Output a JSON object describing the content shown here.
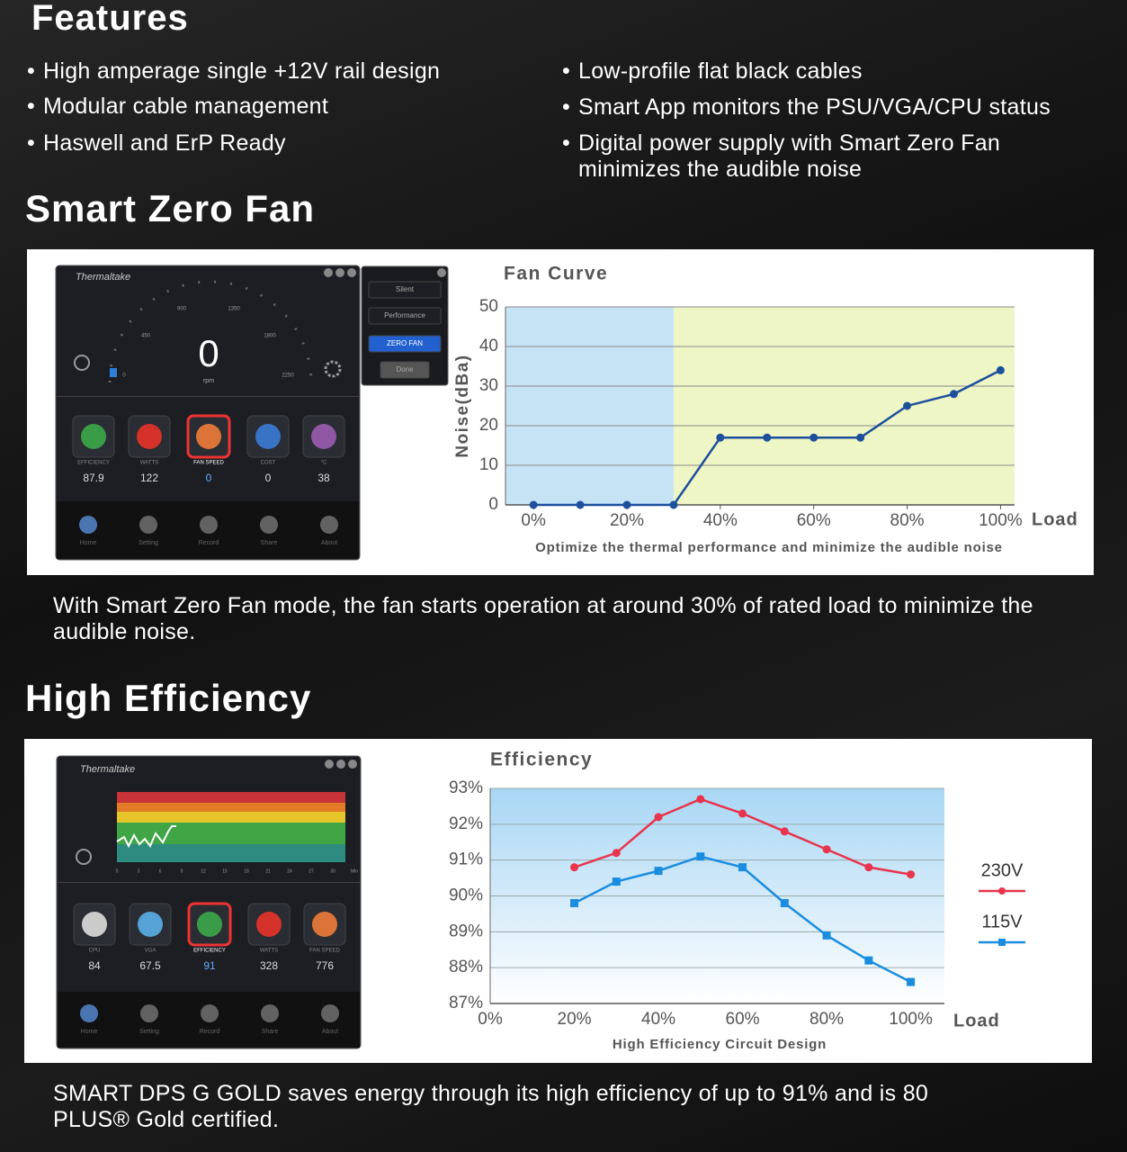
{
  "features": {
    "title": "Features",
    "items_left": [
      "High amperage single +12V rail design",
      "Modular cable management",
      "Haswell and ErP Ready"
    ],
    "items_right": [
      "Low-profile flat black cables",
      "Smart App monitors the PSU/VGA/CPU status",
      "Digital power supply with Smart Zero Fan minimizes the audible noise"
    ]
  },
  "smart_zero_fan": {
    "title": "Smart Zero Fan",
    "description": "With Smart Zero Fan mode, the fan starts operation at around 30% of rated load to minimize the audible noise."
  },
  "high_efficiency": {
    "title": "High Efficiency",
    "description": "SMART DPS G GOLD saves energy through its high efficiency of up to 91% and is 80 PLUS® Gold certified."
  },
  "fan_app": {
    "brand": "Thermaltake",
    "rpm_value": 0,
    "rpm_unit": "rpm",
    "gauge_labels": [
      "0",
      "450",
      "900",
      "1350",
      "1800",
      "2250"
    ],
    "modes": [
      "Silent",
      "Performance",
      "ZERO FAN",
      "Done"
    ],
    "stats": [
      {
        "label": "EFFICIENCY",
        "value": 87.9
      },
      {
        "label": "WATTS",
        "value": 122
      },
      {
        "label": "FAN SPEED",
        "value": 0
      },
      {
        "label": "COST",
        "value": 0
      },
      {
        "label": "°C",
        "value": 38
      }
    ],
    "nav": [
      "Home",
      "Setting",
      "Record",
      "Share",
      "About"
    ]
  },
  "eff_app": {
    "brand": "Thermaltake",
    "graph_ticks": [
      "0",
      "3",
      "6",
      "9",
      "12",
      "15",
      "18",
      "21",
      "24",
      "27",
      "30",
      "Min"
    ],
    "stats": [
      {
        "label": "CPU",
        "value": 84
      },
      {
        "label": "VGA",
        "value": 67.5
      },
      {
        "label": "EFFICIENCY",
        "value": 91
      },
      {
        "label": "WATTS",
        "value": 328
      },
      {
        "label": "FAN SPEED",
        "value": 776
      }
    ],
    "nav": [
      "Home",
      "Setting",
      "Record",
      "Share",
      "About"
    ]
  },
  "chart_data": [
    {
      "type": "line",
      "title": "Fan Curve",
      "x_label": "Load",
      "y_label": "Noise(dBa)",
      "caption": "Optimize the thermal performance and minimize the audible noise",
      "x": [
        0,
        10,
        20,
        30,
        40,
        50,
        60,
        70,
        80,
        90,
        100
      ],
      "values": [
        0,
        0,
        0,
        0,
        17,
        17,
        17,
        17,
        25,
        28,
        34
      ],
      "color": "#1d4f9c",
      "marker": "circle",
      "xlim": [
        -6,
        103
      ],
      "ylim": [
        0,
        50
      ],
      "xticks": [
        {
          "value": 0,
          "label": "0%"
        },
        {
          "value": 20,
          "label": "20%"
        },
        {
          "value": 40,
          "label": "40%"
        },
        {
          "value": 60,
          "label": "60%"
        },
        {
          "value": 80,
          "label": "80%"
        },
        {
          "value": 100,
          "label": "100%"
        }
      ],
      "yticks": [
        0,
        10,
        20,
        30,
        40,
        50
      ],
      "grid": true,
      "zones": [
        {
          "from": -6,
          "to": 30,
          "color": "#c6e3f6"
        },
        {
          "from": 30,
          "to": 103,
          "color": "#eef6c6"
        }
      ]
    },
    {
      "type": "line",
      "title": "Efficiency",
      "x_label": "Load",
      "caption": "High Efficiency Circuit Design",
      "x": [
        20,
        30,
        40,
        50,
        60,
        70,
        80,
        90,
        100
      ],
      "series": [
        {
          "name": "230V",
          "color": "#e8344c",
          "marker": "circle",
          "values": [
            90.8,
            91.2,
            92.2,
            92.7,
            92.3,
            91.8,
            91.3,
            90.8,
            90.6
          ]
        },
        {
          "name": "115V",
          "color": "#1a8de0",
          "marker": "square",
          "values": [
            89.8,
            90.4,
            90.7,
            91.1,
            90.8,
            89.8,
            88.9,
            88.2,
            87.6
          ]
        }
      ],
      "xlim": [
        0,
        108
      ],
      "ylim": [
        87,
        93
      ],
      "xticks": [
        {
          "value": 0,
          "label": "0%"
        },
        {
          "value": 20,
          "label": "20%"
        },
        {
          "value": 40,
          "label": "40%"
        },
        {
          "value": 60,
          "label": "60%"
        },
        {
          "value": 80,
          "label": "80%"
        },
        {
          "value": 100,
          "label": "100%"
        }
      ],
      "yticks": [
        {
          "value": 87,
          "label": "87%"
        },
        {
          "value": 88,
          "label": "88%"
        },
        {
          "value": 89,
          "label": "89%"
        },
        {
          "value": 90,
          "label": "90%"
        },
        {
          "value": 91,
          "label": "91%"
        },
        {
          "value": 92,
          "label": "92%"
        },
        {
          "value": 93,
          "label": "93%"
        }
      ],
      "grid": true,
      "legend": "right",
      "plot_gradient": [
        "#a8d6f4",
        "#ffffff"
      ]
    }
  ]
}
